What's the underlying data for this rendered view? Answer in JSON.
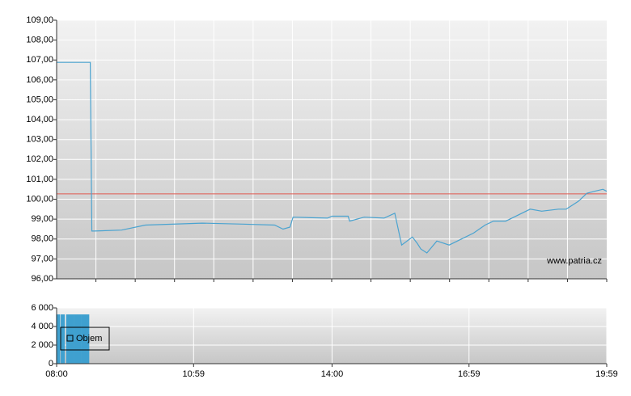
{
  "chart_data": [
    {
      "type": "line",
      "color": "#4aa3d0",
      "xlim": [
        "08:00",
        "19:59"
      ],
      "x": [
        "08:00",
        "08:44",
        "08:46",
        "08:49",
        "09:25",
        "09:56",
        "11:10",
        "12:03",
        "12:45",
        "12:56",
        "13:05",
        "13:09",
        "13:54",
        "14:00",
        "14:21",
        "14:23",
        "14:42",
        "15:08",
        "15:22",
        "15:31",
        "15:45",
        "15:51",
        "15:56",
        "16:04",
        "16:17",
        "16:33",
        "16:49",
        "17:05",
        "17:20",
        "17:31",
        "17:47",
        "18:03",
        "18:19",
        "18:34",
        "18:56",
        "19:06",
        "19:22",
        "19:33",
        "19:43",
        "19:54",
        "19:59"
      ],
      "values": [
        106.88,
        106.88,
        98.4,
        98.4,
        98.45,
        98.7,
        98.8,
        98.75,
        98.7,
        98.5,
        98.6,
        99.1,
        99.05,
        99.15,
        99.15,
        98.9,
        99.1,
        99.05,
        99.3,
        97.7,
        98.1,
        97.8,
        97.5,
        97.3,
        97.9,
        97.7,
        98.0,
        98.3,
        98.7,
        98.9,
        98.9,
        99.2,
        99.5,
        99.4,
        99.5,
        99.5,
        99.9,
        100.3,
        100.4,
        100.5,
        100.4
      ],
      "reference_line": {
        "value": 100.27,
        "color": "#e05a50"
      },
      "ylim": [
        96,
        109
      ],
      "yticks": [
        {
          "value": 96,
          "label": "96,00"
        },
        {
          "value": 97,
          "label": "97,00"
        },
        {
          "value": 98,
          "label": "98,00"
        },
        {
          "value": 99,
          "label": "99,00"
        },
        {
          "value": 100,
          "label": "100,00"
        },
        {
          "value": 101,
          "label": "101,00"
        },
        {
          "value": 102,
          "label": "102,00"
        },
        {
          "value": 103,
          "label": "103,00"
        },
        {
          "value": 104,
          "label": "104,00"
        },
        {
          "value": 105,
          "label": "105,00"
        },
        {
          "value": 106,
          "label": "106,00"
        },
        {
          "value": 107,
          "label": "107,00"
        },
        {
          "value": 108,
          "label": "108,00"
        },
        {
          "value": 109,
          "label": "109,00"
        }
      ],
      "grid": true,
      "watermark": "www.patria.cz"
    },
    {
      "type": "bar",
      "xlim": [
        "08:00",
        "19:59"
      ],
      "x": [
        "08:02",
        "08:08",
        "08:15",
        "08:20",
        "08:25",
        "08:30",
        "08:35",
        "08:40"
      ],
      "series": [
        {
          "name": "Objem",
          "color": "#3fa0cf",
          "values": [
            5300,
            5300,
            5300,
            5300,
            5300,
            5300,
            5300,
            5300
          ]
        }
      ],
      "ylim": [
        0,
        6000
      ],
      "yticks": [
        {
          "value": 0,
          "label": "0"
        },
        {
          "value": 2000,
          "label": "2 000"
        },
        {
          "value": 4000,
          "label": "4 000"
        },
        {
          "value": 6000,
          "label": "6 000"
        }
      ],
      "xticks": [
        "08:00",
        "10:59",
        "14:00",
        "16:59",
        "19:59"
      ],
      "grid": true
    }
  ]
}
